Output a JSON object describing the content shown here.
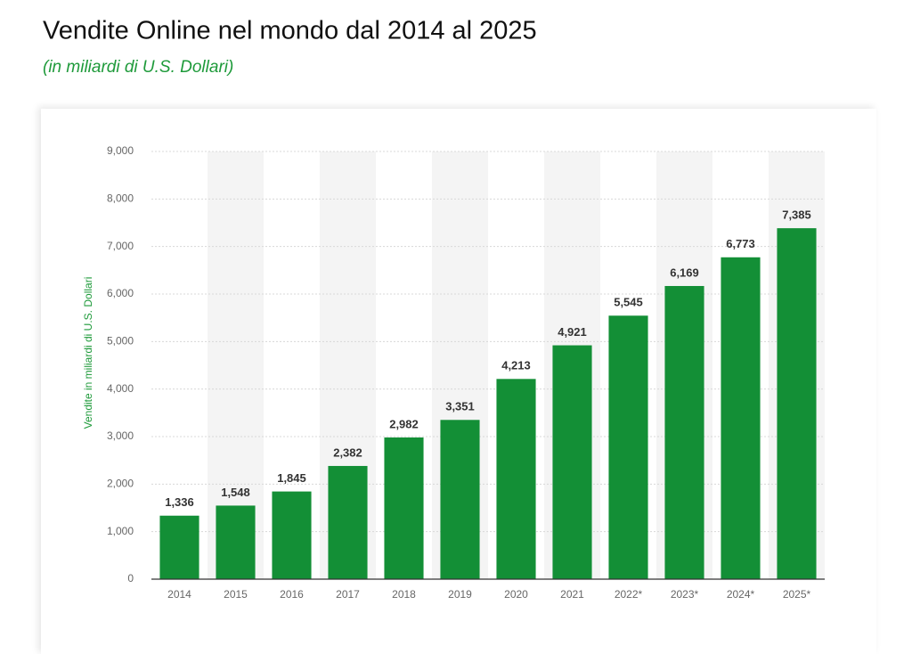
{
  "chart_data": {
    "type": "bar",
    "title": "Vendite Online nel mondo dal 2014 al 2025",
    "subtitle": "(in miliardi di U.S. Dollari)",
    "ylabel": "Vendite in miliardi di U.S. Dollari",
    "categories": [
      "2014",
      "2015",
      "2016",
      "2017",
      "2018",
      "2019",
      "2020",
      "2021",
      "2022*",
      "2023*",
      "2024*",
      "2025*"
    ],
    "values": [
      1336,
      1548,
      1845,
      2382,
      2982,
      3351,
      4213,
      4921,
      5545,
      6169,
      6773,
      7385
    ],
    "value_labels": [
      "1,336",
      "1,548",
      "1,845",
      "2,382",
      "2,982",
      "3,351",
      "4,213",
      "4,921",
      "5,545",
      "6,169",
      "6,773",
      "7,385"
    ],
    "color": "#138f36",
    "ylim": [
      0,
      9000
    ],
    "yticks": [
      0,
      {
        "value": 1000,
        "label": "1,000"
      },
      {
        "value": 2000,
        "label": "2,000"
      },
      {
        "value": 3000,
        "label": "3,000"
      },
      {
        "value": 4000,
        "label": "4,000"
      },
      {
        "value": 5000,
        "label": "5,000"
      },
      {
        "value": 6000,
        "label": "6,000"
      },
      {
        "value": 7000,
        "label": "7,000"
      },
      {
        "value": 8000,
        "label": "8,000"
      },
      {
        "value": 9000,
        "label": "9,000"
      }
    ],
    "grid": true
  }
}
